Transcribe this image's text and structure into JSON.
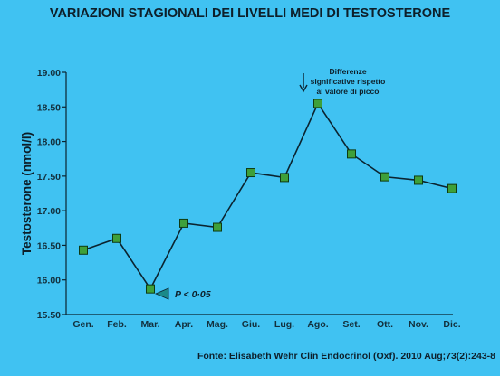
{
  "chart_data": {
    "type": "line",
    "title": "VARIAZIONI STAGIONALI DEI LIVELLI MEDI DI TESTOSTERONE",
    "ylabel": "Testosterone (nmol/l)",
    "xlabel": "",
    "categories": [
      "Gen.",
      "Feb.",
      "Mar.",
      "Apr.",
      "Mag.",
      "Giu.",
      "Lug.",
      "Ago.",
      "Set.",
      "Ott.",
      "Nov.",
      "Dic."
    ],
    "values": [
      16.43,
      16.6,
      15.87,
      16.82,
      16.76,
      17.55,
      17.48,
      18.55,
      17.82,
      17.49,
      17.44,
      17.32
    ],
    "ylim": [
      15.5,
      19.0
    ],
    "yticks": [
      "15.50",
      "16.00",
      "16.50",
      "17.00",
      "17.50",
      "18.00",
      "18.50",
      "19.00"
    ],
    "grid": false,
    "legend": "none",
    "annotations": {
      "peak_note": [
        "Differenze",
        "significative rispetto",
        "al valore di picco"
      ],
      "p_value": "P < 0·05"
    },
    "source": "Fonte: Elisabeth Wehr Clin Endocrinol (Oxf). 2010 Aug;73(2):243-8",
    "colors": {
      "background": "#40c2f2",
      "line": "#0b2430",
      "marker_fill": "#3ea03a",
      "marker_stroke": "#0f3a12",
      "arrow_marker": "#1a8a8a"
    }
  }
}
